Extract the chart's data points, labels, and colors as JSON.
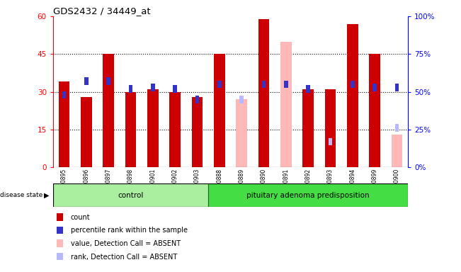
{
  "title": "GDS2432 / 34449_at",
  "samples": [
    "GSM100895",
    "GSM100896",
    "GSM100897",
    "GSM100898",
    "GSM100901",
    "GSM100902",
    "GSM100903",
    "GSM100888",
    "GSM100889",
    "GSM100890",
    "GSM100891",
    "GSM100892",
    "GSM100893",
    "GSM100894",
    "GSM100899",
    "GSM100900"
  ],
  "groups": [
    "control",
    "control",
    "control",
    "control",
    "control",
    "control",
    "control",
    "pituitary adenoma predisposition",
    "pituitary adenoma predisposition",
    "pituitary adenoma predisposition",
    "pituitary adenoma predisposition",
    "pituitary adenoma predisposition",
    "pituitary adenoma predisposition",
    "pituitary adenoma predisposition",
    "pituitary adenoma predisposition",
    "pituitary adenoma predisposition"
  ],
  "control_count": 7,
  "red_bar": [
    34,
    28,
    45,
    30,
    31,
    30,
    28,
    45,
    null,
    59,
    null,
    31,
    31,
    57,
    45,
    null
  ],
  "blue_sq_pct": [
    48,
    57,
    57,
    52,
    53,
    52,
    45,
    55,
    null,
    55,
    55,
    52,
    null,
    55,
    53,
    53
  ],
  "pink_bar": [
    null,
    null,
    null,
    null,
    null,
    null,
    null,
    null,
    27,
    null,
    50,
    null,
    31,
    null,
    null,
    13
  ],
  "light_blue_sq_pct": [
    null,
    null,
    null,
    null,
    null,
    null,
    null,
    null,
    45,
    null,
    null,
    null,
    17,
    null,
    null,
    26
  ],
  "ylim_left": [
    0,
    60
  ],
  "ylim_right": [
    0,
    100
  ],
  "yticks_left": [
    0,
    15,
    30,
    45,
    60
  ],
  "yticks_right": [
    0,
    25,
    50,
    75,
    100
  ],
  "ytick_labels_left": [
    "0",
    "15",
    "30",
    "45",
    "60"
  ],
  "ytick_labels_right": [
    "0%",
    "25%",
    "50%",
    "75%",
    "100%"
  ],
  "red_color": "#cc0000",
  "blue_color": "#3333cc",
  "pink_color": "#ffb8b8",
  "light_blue_color": "#b8b8ff",
  "control_color": "#aaeea0",
  "disease_color": "#44dd44",
  "bar_width": 0.5,
  "legend_items": [
    {
      "label": "count",
      "color": "#cc0000"
    },
    {
      "label": "percentile rank within the sample",
      "color": "#3333cc"
    },
    {
      "label": "value, Detection Call = ABSENT",
      "color": "#ffb8b8"
    },
    {
      "label": "rank, Detection Call = ABSENT",
      "color": "#b8b8ff"
    }
  ]
}
